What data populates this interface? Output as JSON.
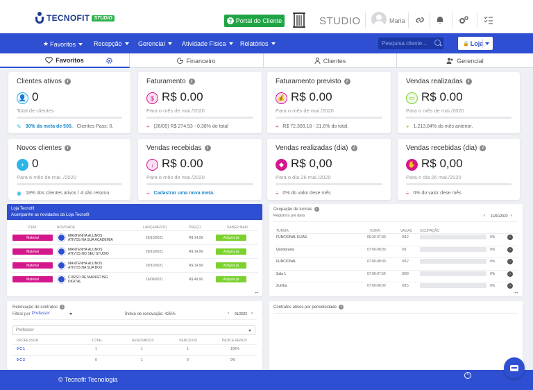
{
  "brand": {
    "name": "TECNOFIT",
    "badge": "STUDIO"
  },
  "header": {
    "portal_label": "Portal do Cliente",
    "studio_label": "STUDIO",
    "user_name": "Maria"
  },
  "nav": {
    "items": [
      "Favoritos",
      "Recepção",
      "Gerencial",
      "Atividade Física",
      "Relatórios"
    ],
    "search_placeholder": "Pesquisa cliente...",
    "loja_label": "Loja"
  },
  "tabs": [
    {
      "label": "Favoritos",
      "icon": "heart-icon"
    },
    {
      "label": "Financeiro",
      "icon": "chart-icon"
    },
    {
      "label": "Clientes",
      "icon": "user-icon"
    },
    {
      "label": "Gerencial",
      "icon": "users-icon"
    }
  ],
  "cards": [
    {
      "title": "Clientes ativos",
      "value": "0",
      "sub": "Total de clientes",
      "foot_strong": "30% da meta de 500.",
      "foot": "Clientes Pass: 0.",
      "icon": "user-icon",
      "color": "#2bb5e8",
      "foot_icon": "pencil-icon"
    },
    {
      "title": "Faturamento",
      "value": "R$ 0.00",
      "sub": "Para o mês de mai./2020",
      "foot_strong": "",
      "foot": "(26/05) R$ 274,53 - 0,38% do total",
      "icon": "dollar-icon",
      "color": "#d4178b",
      "foot_icon": "divide-icon"
    },
    {
      "title": "Faturamento previsto",
      "value": "R$ 0.00",
      "sub": "Para o mês de mai./2020",
      "foot_strong": "",
      "foot": "R$ 72.309,18 - 21,6% do total.",
      "icon": "moneybag-icon",
      "color": "#d4178b",
      "foot_icon": "divide-icon"
    },
    {
      "title": "Vendas realizadas",
      "value": "R$ 0.00",
      "sub": "Para o mês de mai./2020",
      "foot_strong": "",
      "foot": "1.213,84% do mês anterior.",
      "icon": "cash-icon",
      "color": "#7cd12f",
      "foot_icon": "plus-icon"
    },
    {
      "title": "Novos clientes",
      "value": "0",
      "sub": "Para o mês de mai. /2020",
      "foot_strong": "",
      "foot": "18% dos clientes ativos / 4 são retorno",
      "icon": "user-plus-icon",
      "color": "#2bb5e8",
      "foot_icon": "eye-icon"
    },
    {
      "title": "Vendas recebidas",
      "value": "R$ 0.00",
      "sub": "Para o mês de mai./2020",
      "foot_strong": "Cadastrar uma nova meta.",
      "foot": "",
      "icon": "receive-icon",
      "color": "#d4178b",
      "foot_icon": "divide-icon"
    },
    {
      "title": "Vendas realizadas (dia)",
      "value": "R$ 0,00",
      "sub": "Para o dia 26 mai./2020",
      "foot_strong": "",
      "foot": "0% do valor dese mês",
      "icon": "tag-icon",
      "color": "#d4178b",
      "foot_icon": "divide-icon"
    },
    {
      "title": "Vendas recebidas (dia)",
      "value": "R$ 0,00",
      "sub": "Para o dia 26 mai./2020",
      "foot_strong": "",
      "foot": "0% do valor dese mês",
      "icon": "hand-icon",
      "color": "#d4178b",
      "foot_icon": "divide-icon"
    }
  ],
  "loja": {
    "title": "Loja Tecnofit",
    "subtitle": "Acompanhe as novidades da Loja Tecnofit",
    "headers": [
      "ITEM",
      "NOVIDADE",
      "LANÇAMENTO",
      "PREÇO",
      "SABER MAIS"
    ],
    "rows": [
      {
        "item": "Material",
        "name1": "MANTENHA ALUNOS",
        "name2": "ATIVOS NA SUA ACADEMIA",
        "date": "29/10/2021",
        "price": "R$ 14,99",
        "action": "Adquira já"
      },
      {
        "item": "Material",
        "name1": "MANTENHA ALUNOS",
        "name2": "ATIVOS NO SEU STUDIO",
        "date": "29/10/2021",
        "price": "R$ 14,99",
        "action": "Adquira já"
      },
      {
        "item": "Material",
        "name1": "MANTENHA ALUNOS",
        "name2": "ATIVOS NA SUA BOX",
        "date": "29/10/2021",
        "price": "R$ 14,99",
        "action": "Adquira já"
      },
      {
        "item": "Material",
        "name1": "CURSO DE MARKETING",
        "name2": "DIGITAL",
        "date": "16/09/2021",
        "price": "R$ 49,90",
        "action": "Adquira já"
      }
    ]
  },
  "ocupacao": {
    "title": "Ocupação de turmas",
    "subtitle": "Registros por data",
    "date": "11/01/2022",
    "headers": [
      "TURMA",
      "HORA",
      "VAGAS",
      "OCUPAÇÃO"
    ],
    "rows": [
      {
        "turma": "FUNCIONAL ELIAS",
        "hora": "06:30-07:30",
        "vagas": "0/12",
        "pct": "0%",
        "fill": 0
      },
      {
        "turma": "Quiropraxia",
        "hora": "07:00-08:00",
        "vagas": "0/1",
        "pct": "0%",
        "fill": 0
      },
      {
        "turma": "FUNCIONAL",
        "hora": "07:00-08:00",
        "vagas": "0/12",
        "pct": "0%",
        "fill": 0
      },
      {
        "turma": "Sala 1",
        "hora": "07:00-07:59",
        "vagas": "0/90",
        "pct": "0%",
        "fill": 0
      },
      {
        "turma": "Zumba",
        "hora": "07:00-08:00",
        "vagas": "0/15",
        "pct": "0%",
        "fill": 0
      }
    ]
  },
  "renovacao": {
    "title": "Renovação de contratos",
    "filter_label": "Filtrar por",
    "filter_value": "Professor",
    "index_label": "Índice de renovação: 425%",
    "date": "01/2022",
    "select_value": "Professor",
    "headers": [
      "PROFESSOR",
      "TOTAL",
      "RENOVADOS",
      "VENCIDOS",
      "ÍNDICE RENOV"
    ],
    "rows": [
      {
        "prof": "0 C 1",
        "total": "1",
        "renov": "1",
        "venc": "1",
        "idx": "100%"
      },
      {
        "prof": "0 C 2",
        "total": "0",
        "renov": "1",
        "venc": "0",
        "idx": "0%"
      }
    ]
  },
  "contratos": {
    "title": "Contratos ativos por periodicidade"
  },
  "footer": {
    "text": "© Tecnofit Tecnologia"
  }
}
